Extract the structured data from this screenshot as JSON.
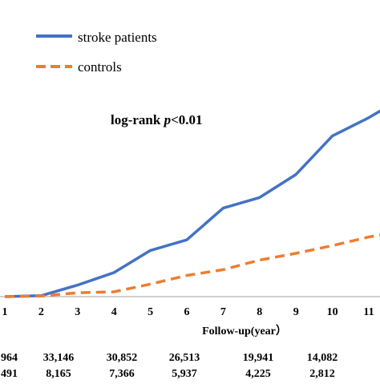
{
  "chart_data": {
    "type": "line",
    "title": "",
    "annotation_prefix": "log-rank ",
    "annotation_p": "p",
    "annotation_suffix": "<0.01",
    "xlabel": "Follow-up(year）",
    "ylabel": "",
    "xlim": [
      0.9,
      11.45
    ],
    "ylim": [
      0,
      1
    ],
    "x_ticks": [
      "1",
      "2",
      "3",
      "4",
      "5",
      "6",
      "7",
      "8",
      "9",
      "10",
      "11"
    ],
    "grid": false,
    "legend_position": "top-left",
    "series": [
      {
        "name": "stroke patients",
        "color": "#4472C4",
        "style": "solid",
        "x": [
          1,
          2,
          3,
          4,
          5,
          6,
          7,
          8,
          9,
          10,
          11,
          11.45
        ],
        "y": [
          0,
          0.005,
          0.06,
          0.125,
          0.24,
          0.295,
          0.46,
          0.515,
          0.635,
          0.835,
          0.93,
          0.98
        ]
      },
      {
        "name": "controls",
        "color": "#ED7D31",
        "style": "dashed",
        "x": [
          1,
          2,
          3,
          4,
          5,
          6,
          7,
          8,
          9,
          10,
          11,
          11.45
        ],
        "y": [
          0,
          0.003,
          0.02,
          0.025,
          0.065,
          0.11,
          0.14,
          0.19,
          0.225,
          0.265,
          0.31,
          0.325
        ]
      }
    ],
    "risk_table": {
      "rows": [
        [
          "964",
          "33,146",
          "30,852",
          "26,513",
          "19,941",
          "14,082"
        ],
        [
          "491",
          "8,165",
          "7,366",
          "5,937",
          "4,225",
          "2,812"
        ]
      ]
    }
  }
}
